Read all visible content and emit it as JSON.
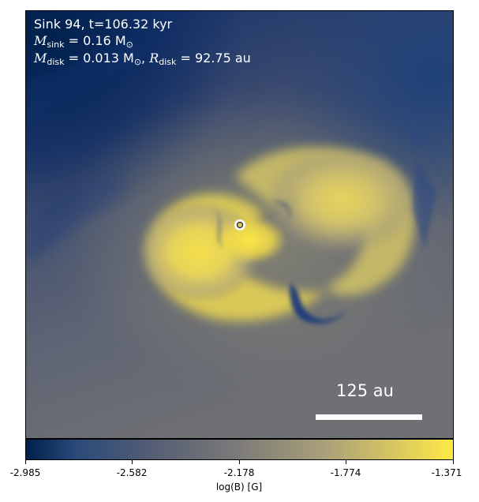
{
  "figure": {
    "annotation_line1": "Sink 94, t=106.32 kyr",
    "annotation_line2": {
      "m": "M",
      "sub": "sink",
      "rest": " = 0.16 M",
      "sun": "⊙"
    },
    "annotation_line3": {
      "m1": "M",
      "sub1": "disk",
      "rest1": " = 0.013 M",
      "sun": "⊙",
      "sep": ", ",
      "r": "R",
      "sub2": "disk",
      "rest2": " = 92.75 au"
    },
    "scale_bar_label": "125 au",
    "sink_marker": "sink-circle-icon"
  },
  "colorbar": {
    "label": "log(B) [G]",
    "ticks": [
      "-2.985",
      "-2.582",
      "-2.178",
      "-1.774",
      "-1.371"
    ],
    "cmap": "cividis",
    "color_low": "#00204c",
    "color_mid": "#7c7b78",
    "color_high": "#ffe945"
  }
}
